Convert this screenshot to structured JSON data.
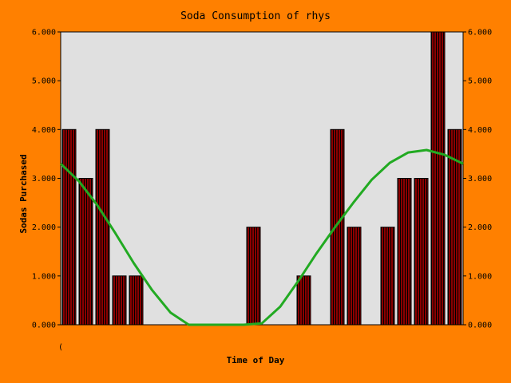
{
  "chart_data": {
    "type": "bar",
    "title": "Soda Consumption of rhys",
    "xlabel": "Time of Day",
    "ylabel": "Sodas Purchased",
    "x_tick_label": "(",
    "ylim": [
      0,
      6
    ],
    "yticks": [
      "0.000",
      "1.000",
      "2.000",
      "3.000",
      "4.000",
      "5.000",
      "6.000"
    ],
    "grid": false,
    "legend": "none",
    "values": [
      4,
      3,
      4,
      1,
      1,
      0,
      0,
      0,
      0,
      0,
      0,
      2,
      0,
      0,
      1,
      0,
      4,
      2,
      0,
      2,
      3,
      3,
      6,
      4
    ],
    "trend_line": {
      "type": "line",
      "values": [
        3.3,
        2.94,
        2.45,
        1.87,
        1.26,
        0.71,
        0.25,
        -0.05,
        -0.18,
        -0.12,
        0.0,
        0.03,
        0.37,
        0.9,
        1.47,
        2.0,
        2.5,
        2.97,
        3.32,
        3.53,
        3.58,
        3.48,
        3.3
      ]
    },
    "colors": {
      "background": "#ff8000",
      "plot_area": "#e0e0e0",
      "bar_fill": "#8b0000",
      "bar_stripe": "#000000",
      "trend_line": "#22aa22"
    }
  }
}
